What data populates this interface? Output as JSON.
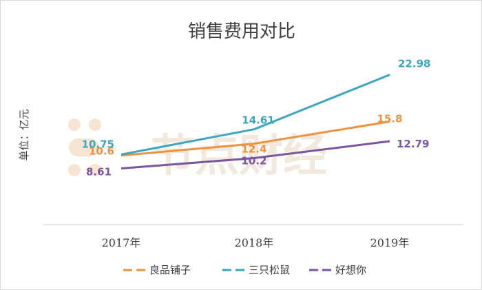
{
  "chart_data": {
    "type": "line",
    "title": "销售费用对比",
    "ylabel": "单位：亿元",
    "xlabel": "",
    "categories": [
      "2017年",
      "2018年",
      "2019年"
    ],
    "ylim": [
      0,
      28
    ],
    "grid": false,
    "legend_position": "bottom",
    "watermark": "节点财经",
    "series": [
      {
        "name": "良品铺子",
        "color": "#f0923c",
        "values": [
          10.6,
          12.4,
          15.8
        ],
        "labels": [
          "10.6",
          "12.4",
          "15.8"
        ]
      },
      {
        "name": "三只松鼠",
        "color": "#3aa6bf",
        "values": [
          10.75,
          14.61,
          22.98
        ],
        "labels": [
          "10.75",
          "14.61",
          "22.98"
        ]
      },
      {
        "name": "好想你",
        "color": "#7a55a0",
        "values": [
          8.61,
          10.2,
          12.79
        ],
        "labels": [
          "8.61",
          "10.2",
          "12.79"
        ]
      }
    ]
  }
}
